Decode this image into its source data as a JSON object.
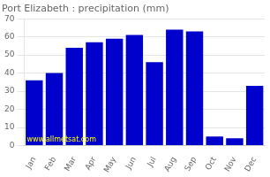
{
  "chart_data": {
    "type": "bar",
    "title": "Port Elizabeth : precipitation (mm)",
    "categories": [
      "Jan",
      "Feb",
      "Mar",
      "Apr",
      "May",
      "Jun",
      "Jul",
      "Aug",
      "Sep",
      "Oct",
      "Nov",
      "Dec"
    ],
    "values": [
      36,
      40,
      54,
      57,
      59,
      61,
      46,
      64,
      63,
      5,
      4,
      33
    ],
    "color": "#0000cc",
    "ylim": [
      0,
      70
    ],
    "yticks": [
      0,
      10,
      20,
      30,
      40,
      50,
      60,
      70
    ],
    "grid": true,
    "annotations": [
      {
        "text": "www.allmetsat.com",
        "color": "#ffff00"
      }
    ]
  }
}
